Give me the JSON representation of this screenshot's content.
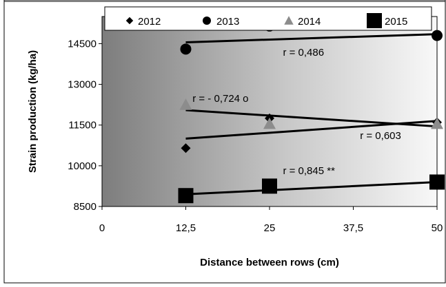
{
  "chart_data": {
    "type": "scatter",
    "xlabel": "Distance between rows (cm)",
    "ylabel": "Strain production (kg/ha)",
    "xlim": [
      0,
      50
    ],
    "ylim": [
      8500,
      15500
    ],
    "x_ticks": [
      0,
      12.5,
      25,
      37.5,
      50
    ],
    "x_tick_labels": [
      "0",
      "12,5",
      "25",
      "37,5",
      "50"
    ],
    "y_ticks": [
      8500,
      10000,
      11500,
      13000,
      14500
    ],
    "y_tick_labels": [
      "8500",
      "10000",
      "11500",
      "13000",
      "14500"
    ],
    "grid": false,
    "legend_position": "top",
    "plot_background": "gray gradient",
    "series": [
      {
        "name": "2012",
        "marker": "diamond",
        "color": "#000000",
        "x": [
          12.5,
          25,
          50
        ],
        "y": [
          10650,
          11750,
          11600
        ],
        "trend": {
          "x": [
            12.5,
            50
          ],
          "y": [
            12050,
            11450
          ]
        }
      },
      {
        "name": "2013",
        "marker": "circle",
        "color": "#000000",
        "x": [
          12.5,
          25,
          50
        ],
        "y": [
          14300,
          15150,
          14800
        ],
        "trend": {
          "x": [
            12.5,
            50
          ],
          "y": [
            14550,
            14850
          ]
        }
      },
      {
        "name": "2014",
        "marker": "triangle",
        "color": "#8c8c8c",
        "x": [
          12.5,
          25,
          50
        ],
        "y": [
          12250,
          11550,
          11550
        ],
        "trend": {
          "x": [
            12.5,
            50
          ],
          "y": [
            11000,
            11650
          ]
        }
      },
      {
        "name": "2015",
        "marker": "square",
        "color": "#000000",
        "x": [
          12.5,
          25,
          50
        ],
        "y": [
          8900,
          9250,
          9400
        ],
        "trend": {
          "x": [
            12.5,
            50
          ],
          "y": [
            8950,
            9400
          ]
        }
      }
    ],
    "annotations": [
      {
        "text": "r = 0,486",
        "x": 27,
        "y": 14050
      },
      {
        "text": "r = - 0,724 o",
        "x": 13.5,
        "y": 12350
      },
      {
        "text": "r = 0,603",
        "x": 38.5,
        "y": 10990
      },
      {
        "text": "r = 0,845 **",
        "x": 27,
        "y": 9690
      }
    ]
  }
}
